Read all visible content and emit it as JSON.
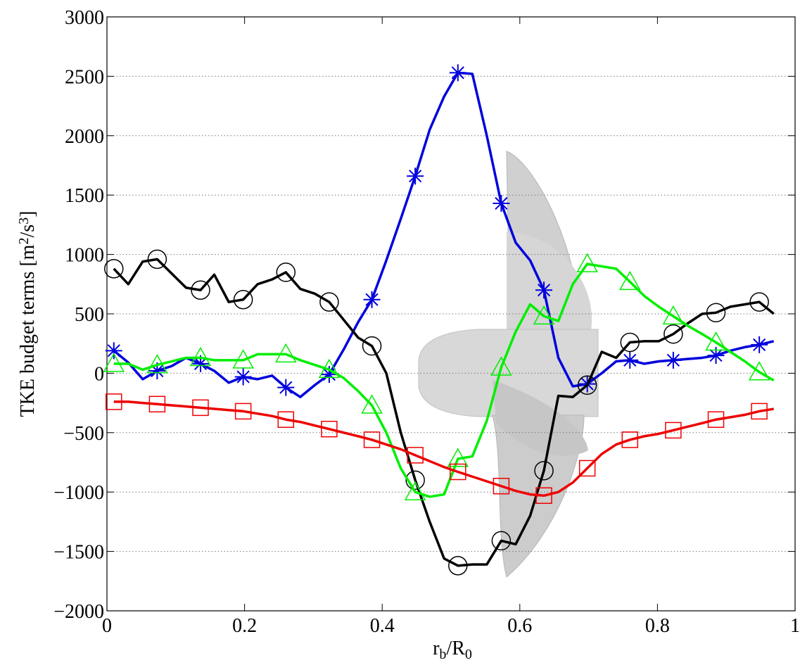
{
  "chart_data": {
    "type": "line",
    "xlabel": [
      {
        "text": "r"
      },
      {
        "text": "b",
        "script": "sub"
      },
      {
        "text": "/R"
      },
      {
        "text": "0",
        "script": "sub"
      }
    ],
    "ylabel": [
      {
        "text": "TKE budget terms [m"
      },
      {
        "text": "2",
        "script": "super"
      },
      {
        "text": "/s"
      },
      {
        "text": "3",
        "script": "super"
      },
      {
        "text": "]"
      }
    ],
    "x": [
      0.01,
      0.031,
      0.052,
      0.073,
      0.094,
      0.115,
      0.136,
      0.156,
      0.177,
      0.198,
      0.219,
      0.24,
      0.26,
      0.281,
      0.302,
      0.323,
      0.344,
      0.365,
      0.385,
      0.406,
      0.427,
      0.448,
      0.469,
      0.49,
      0.51,
      0.531,
      0.552,
      0.573,
      0.594,
      0.615,
      0.635,
      0.656,
      0.677,
      0.698,
      0.719,
      0.74,
      0.76,
      0.781,
      0.802,
      0.823,
      0.844,
      0.865,
      0.885,
      0.906,
      0.927,
      0.948,
      0.969
    ],
    "markevery": 3,
    "series": [
      {
        "color": "#0000dd",
        "marker": "asterisk",
        "values": [
          190,
          90,
          -50,
          20,
          60,
          130,
          80,
          20,
          -80,
          -30,
          -50,
          -20,
          -120,
          -200,
          -100,
          -10,
          200,
          430,
          620,
          950,
          1300,
          1660,
          2050,
          2330,
          2530,
          2520,
          2000,
          1430,
          1100,
          950,
          700,
          130,
          -110,
          -90,
          0,
          100,
          110,
          80,
          100,
          110,
          120,
          130,
          150,
          190,
          220,
          240,
          270
        ]
      },
      {
        "color": "#000000",
        "marker": "circle",
        "values": [
          880,
          750,
          940,
          960,
          840,
          720,
          700,
          830,
          600,
          620,
          750,
          790,
          850,
          710,
          670,
          600,
          450,
          300,
          230,
          0,
          -500,
          -900,
          -1250,
          -1560,
          -1620,
          -1610,
          -1610,
          -1410,
          -1440,
          -1200,
          -820,
          -190,
          -200,
          -100,
          180,
          130,
          260,
          270,
          270,
          330,
          420,
          500,
          510,
          560,
          580,
          600,
          500
        ]
      },
      {
        "color": "#00ee00",
        "marker": "triangle",
        "values": [
          80,
          80,
          30,
          70,
          100,
          130,
          130,
          110,
          110,
          110,
          160,
          160,
          160,
          110,
          70,
          30,
          -40,
          -150,
          -270,
          -500,
          -800,
          -1000,
          -1040,
          -1020,
          -720,
          -700,
          -400,
          50,
          350,
          580,
          480,
          440,
          750,
          920,
          900,
          880,
          770,
          650,
          560,
          480,
          400,
          330,
          260,
          180,
          100,
          10,
          -60
        ]
      },
      {
        "color": "#ee0000",
        "marker": "square",
        "values": [
          -240,
          -240,
          -250,
          -260,
          -270,
          -280,
          -290,
          -300,
          -310,
          -320,
          -340,
          -360,
          -390,
          -410,
          -440,
          -470,
          -500,
          -530,
          -560,
          -600,
          -640,
          -690,
          -740,
          -790,
          -830,
          -870,
          -910,
          -950,
          -990,
          -1020,
          -1030,
          -1000,
          -920,
          -800,
          -680,
          -600,
          -560,
          -530,
          -510,
          -480,
          -450,
          -420,
          -390,
          -370,
          -350,
          -320,
          -300
        ]
      }
    ],
    "xlim": [
      0,
      1
    ],
    "xticks": [
      0,
      0.2,
      0.4,
      0.6,
      0.8,
      1
    ],
    "ylim": [
      -2000,
      3000
    ],
    "yticks": [
      {
        "value": -2000,
        "label": "−2000"
      },
      {
        "value": -1500,
        "label": "−1500"
      },
      {
        "value": -1000,
        "label": "−1000"
      },
      {
        "value": -500,
        "label": "−500"
      },
      0,
      500,
      1000,
      1500,
      2000,
      2500,
      3000
    ],
    "grid": true
  }
}
